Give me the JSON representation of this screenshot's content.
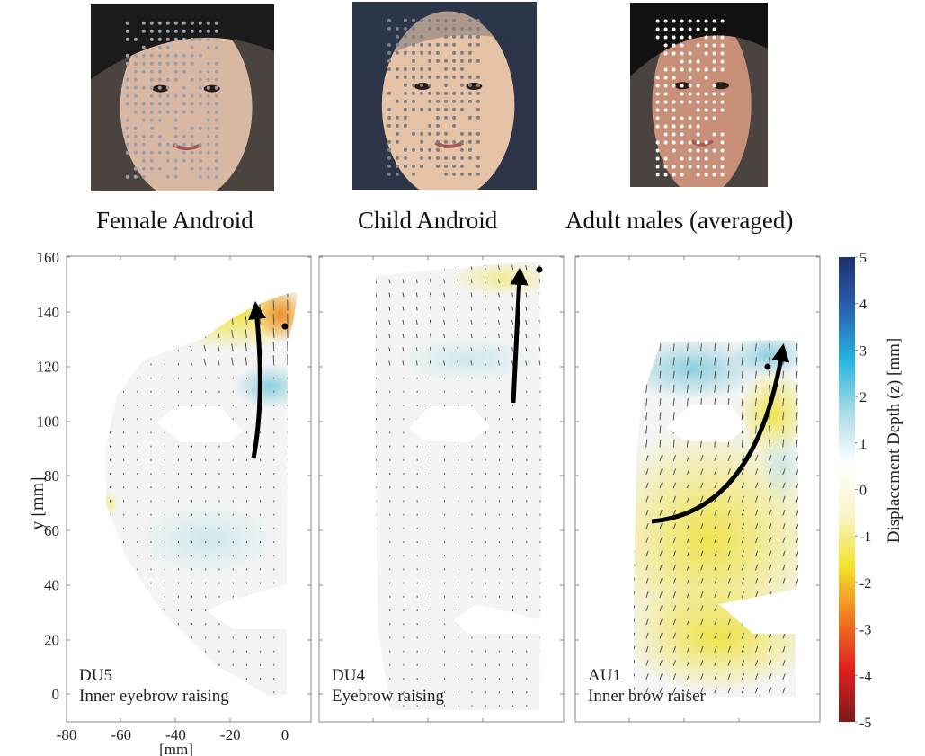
{
  "photos": [
    {
      "caption": "Female Android",
      "skin": "#d9b8a3",
      "hair": "#1b1b1b",
      "dot": "#9aa0aa"
    },
    {
      "caption": "Child Android",
      "skin": "#e6c2a6",
      "hair": "#2c3a4f",
      "dot": "#7a7f88"
    },
    {
      "caption": "Adult males (averaged)",
      "skin": "#c89078",
      "hair": "#121212",
      "dot": "#ffffff"
    }
  ],
  "chart_data": {
    "type": "heatmap",
    "ylabel": "y [mm]",
    "xlabel": "[mm]",
    "y_ticks": [
      "160",
      "140",
      "120",
      "100",
      "80",
      "60",
      "40",
      "20",
      "0"
    ],
    "x_ticks": [
      "-80",
      "-60",
      "-40",
      "-20",
      "0"
    ],
    "xlim": [
      -80,
      10
    ],
    "ylim": [
      -10,
      160
    ],
    "panels": [
      {
        "code": "DU5",
        "name": "Inner eyebrow raising",
        "peak_depth": -3,
        "arrow": "upward along inner brow"
      },
      {
        "code": "DU4",
        "name": "Eyebrow raising",
        "peak_depth": -1,
        "arrow": "upward along brow"
      },
      {
        "code": "AU1",
        "name": "Inner brow raiser",
        "peak_depth": -2,
        "arrow": "curved upward from cheek to inner brow"
      }
    ],
    "colorbar": {
      "label": "Displacement Depth (z) [mm]",
      "ticks": [
        "5",
        "4",
        "3",
        "2",
        "1",
        "0",
        "-1",
        "-2",
        "-3",
        "-4",
        "-5"
      ],
      "range": [
        -5,
        5
      ],
      "colors": [
        "#7a1a1a",
        "#e01f1f",
        "#ee7a22",
        "#f3e22a",
        "#f7f4c8",
        "#ffffff",
        "#a9dbe4",
        "#27b4e0",
        "#2a62b0",
        "#1e2f6e"
      ]
    },
    "vector_color": "#555555",
    "marker_color": "#000000"
  }
}
